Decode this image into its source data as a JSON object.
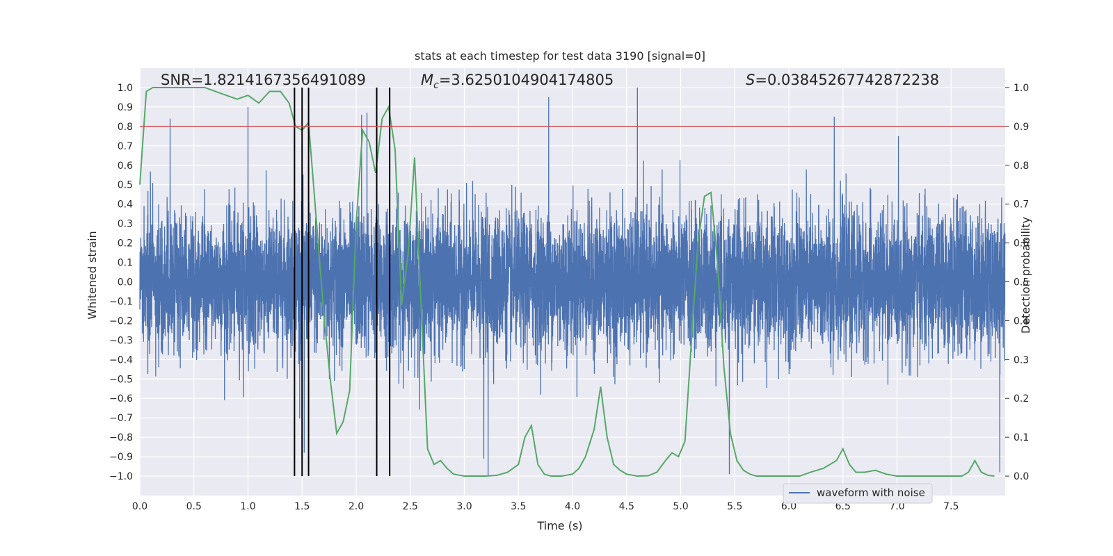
{
  "chart_data": {
    "type": "line",
    "title": "stats at each timestep for test data 3190 [signal=0]",
    "xlabel": "Time (s)",
    "ylabel": "Whitened strain",
    "ylabel_right": "Detection probability",
    "xlim": [
      0.0,
      8.0
    ],
    "ylim": [
      -1.1,
      1.1
    ],
    "ylim_right": [
      -0.05,
      1.05
    ],
    "xticks": [
      "0.0",
      "0.5",
      "1.0",
      "1.5",
      "2.0",
      "2.5",
      "3.0",
      "3.5",
      "4.0",
      "4.5",
      "5.0",
      "5.5",
      "6.0",
      "6.5",
      "7.0",
      "7.5"
    ],
    "yticks_left": [
      "1.0",
      "0.9",
      "0.8",
      "0.7",
      "0.6",
      "0.5",
      "0.4",
      "0.3",
      "0.2",
      "0.1",
      "0.0",
      "−0.1",
      "−0.2",
      "−0.3",
      "−0.4",
      "−0.5",
      "−0.6",
      "−0.7",
      "−0.8",
      "−0.9",
      "−1.0"
    ],
    "yticks_right": [
      "1.0",
      "0.9",
      "0.8",
      "0.7",
      "0.6",
      "0.5",
      "0.4",
      "0.3",
      "0.2",
      "0.1",
      "0.0"
    ],
    "grid": true,
    "annotations": {
      "snr": "SNR=1.8214167356491089",
      "mc_symbol": "M",
      "mc_sub": "c",
      "mc_value": "=3.6250104904174805",
      "s_symbol": "S",
      "s_value": "=0.03845267742872238"
    },
    "legend": {
      "location": "lower-right",
      "entries": [
        "waveform with noise"
      ]
    },
    "threshold_line": {
      "y_right": 0.9,
      "color": "#c44e52"
    },
    "vertical_markers_x": [
      1.43,
      1.5,
      1.56,
      2.19,
      2.31
    ],
    "series": [
      {
        "name": "waveform with noise",
        "axis": "left",
        "color": "#4c72b0",
        "sample_count": 8000,
        "envelope_typical": [
          -0.42,
          0.42
        ],
        "spike_extremes_x": [
          0.28,
          1.0,
          1.52,
          2.05,
          2.1,
          3.18,
          3.22,
          3.78,
          4.6,
          5.45,
          6.42,
          7.95
        ],
        "spike_extremes_y": [
          0.84,
          0.9,
          -0.88,
          0.86,
          0.87,
          -0.91,
          -1.0,
          0.95,
          1.0,
          -0.99,
          0.85,
          -0.98
        ]
      },
      {
        "name": "",
        "axis": "right",
        "color": "#55a868",
        "x": [
          0.0,
          0.06,
          0.12,
          0.2,
          0.3,
          0.4,
          0.5,
          0.6,
          0.7,
          0.8,
          0.9,
          1.0,
          1.1,
          1.2,
          1.3,
          1.38,
          1.44,
          1.5,
          1.56,
          1.62,
          1.7,
          1.76,
          1.82,
          1.88,
          1.94,
          2.0,
          2.06,
          2.12,
          2.18,
          2.24,
          2.3,
          2.36,
          2.42,
          2.48,
          2.54,
          2.6,
          2.66,
          2.72,
          2.78,
          2.84,
          2.9,
          2.96,
          3.0,
          3.1,
          3.2,
          3.3,
          3.4,
          3.5,
          3.56,
          3.62,
          3.68,
          3.74,
          3.8,
          3.9,
          4.0,
          4.06,
          4.12,
          4.2,
          4.26,
          4.32,
          4.38,
          4.44,
          4.5,
          4.6,
          4.7,
          4.78,
          4.86,
          4.92,
          4.98,
          5.04,
          5.1,
          5.16,
          5.22,
          5.28,
          5.34,
          5.4,
          5.46,
          5.52,
          5.58,
          5.64,
          5.7,
          5.8,
          5.9,
          6.0,
          6.1,
          6.2,
          6.26,
          6.32,
          6.38,
          6.44,
          6.5,
          6.56,
          6.62,
          6.7,
          6.8,
          6.9,
          7.0,
          7.1,
          7.2,
          7.3,
          7.4,
          7.5,
          7.6,
          7.66,
          7.72,
          7.78,
          7.84,
          7.9
        ],
        "y": [
          0.75,
          0.99,
          1.0,
          1.0,
          1.0,
          1.0,
          1.0,
          1.0,
          0.99,
          0.98,
          0.97,
          0.98,
          0.96,
          0.99,
          0.99,
          0.96,
          0.9,
          0.89,
          0.91,
          0.7,
          0.42,
          0.25,
          0.11,
          0.14,
          0.22,
          0.65,
          0.89,
          0.86,
          0.78,
          0.92,
          0.95,
          0.84,
          0.44,
          0.57,
          0.82,
          0.44,
          0.07,
          0.03,
          0.04,
          0.02,
          0.005,
          0.002,
          0.0,
          0.0,
          0.0,
          0.002,
          0.01,
          0.03,
          0.1,
          0.13,
          0.03,
          0.005,
          0.0,
          0.0,
          0.005,
          0.02,
          0.05,
          0.12,
          0.23,
          0.1,
          0.03,
          0.015,
          0.005,
          0.0,
          0.001,
          0.01,
          0.04,
          0.06,
          0.05,
          0.09,
          0.35,
          0.6,
          0.72,
          0.73,
          0.55,
          0.28,
          0.11,
          0.04,
          0.015,
          0.005,
          0.0,
          0.0,
          0.0,
          0.0,
          0.0,
          0.01,
          0.015,
          0.02,
          0.03,
          0.04,
          0.07,
          0.03,
          0.01,
          0.01,
          0.015,
          0.005,
          0.0,
          0.0,
          0.0,
          0.0,
          0.0,
          0.0,
          0.0,
          0.01,
          0.04,
          0.01,
          0.002,
          0.0
        ]
      }
    ]
  }
}
